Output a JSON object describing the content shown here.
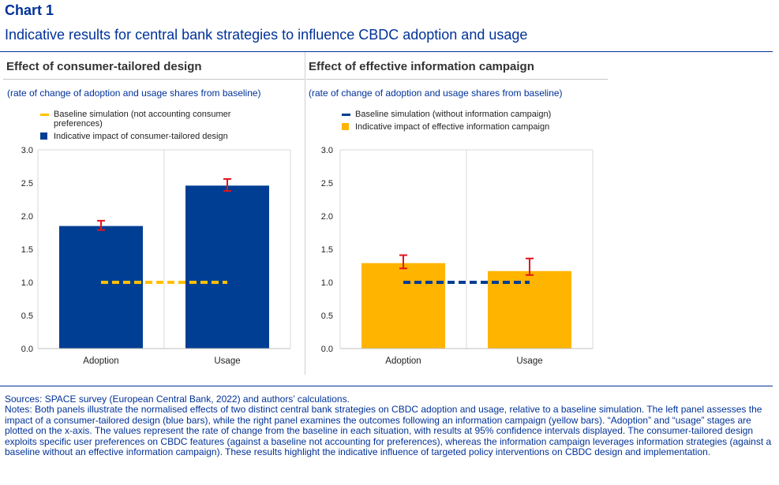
{
  "header": {
    "chart_label": "Chart 1",
    "title": "Indicative results for central bank strategies to influence CBDC adoption and usage"
  },
  "colors": {
    "blue": "#003E93",
    "yellow": "#FFB400",
    "yellow_dash": "#FFC000",
    "error": "#E4131B",
    "grid": "#D9D9D9"
  },
  "chart_data": [
    {
      "type": "bar",
      "title": "Effect of consumer-tailored design",
      "subtitle": "(rate of change of adoption and usage shares from baseline)",
      "categories": [
        "Adoption",
        "Usage"
      ],
      "series": [
        {
          "name": "Indicative impact of consumer-tailored design",
          "values": [
            1.85,
            2.46
          ],
          "error_low": [
            1.79,
            2.38
          ],
          "error_high": [
            1.93,
            2.56
          ]
        }
      ],
      "baseline": {
        "name": "Baseline simulation (not accounting consumer preferences)",
        "value": 1.0
      },
      "ylim": [
        0,
        3
      ],
      "yticks": [
        "0.0",
        "0.5",
        "1.0",
        "1.5",
        "2.0",
        "2.5",
        "3.0"
      ],
      "bar_color": "#003E93",
      "baseline_color": "#FFC000",
      "legend_position": "top-left"
    },
    {
      "type": "bar",
      "title": "Effect of effective information campaign",
      "subtitle": "(rate of change of adoption and usage shares from baseline)",
      "categories": [
        "Adoption",
        "Usage"
      ],
      "series": [
        {
          "name": "Indicative impact of effective information campaign",
          "values": [
            1.29,
            1.17
          ],
          "error_low": [
            1.21,
            1.11
          ],
          "error_high": [
            1.41,
            1.36
          ]
        }
      ],
      "baseline": {
        "name": "Baseline simulation (without information campaign)",
        "value": 1.0
      },
      "ylim": [
        0,
        3
      ],
      "yticks": [
        "0.0",
        "0.5",
        "1.0",
        "1.5",
        "2.0",
        "2.5",
        "3.0"
      ],
      "bar_color": "#FFB400",
      "baseline_color": "#003E93",
      "legend_position": "top-left"
    }
  ],
  "footer": {
    "sources": "Sources: SPACE survey (European Central Bank, 2022) and authors’ calculations.",
    "notes": "Notes: Both panels illustrate the normalised effects of two distinct central bank strategies on CBDC adoption and usage, relative to a baseline simulation. The left panel assesses the impact of a consumer-tailored design (blue bars), while the right panel examines the outcomes following an information campaign (yellow bars). “Adoption” and “usage” stages are plotted on the x-axis. The values represent the rate of change from the baseline in each situation, with results at 95% confidence intervals displayed. The consumer-tailored design exploits specific user preferences on CBDC features (against a baseline not accounting for preferences), whereas the information campaign leverages information strategies (against a baseline without an effective information campaign). These results highlight the indicative influence of targeted policy interventions on CBDC design and implementation."
  }
}
